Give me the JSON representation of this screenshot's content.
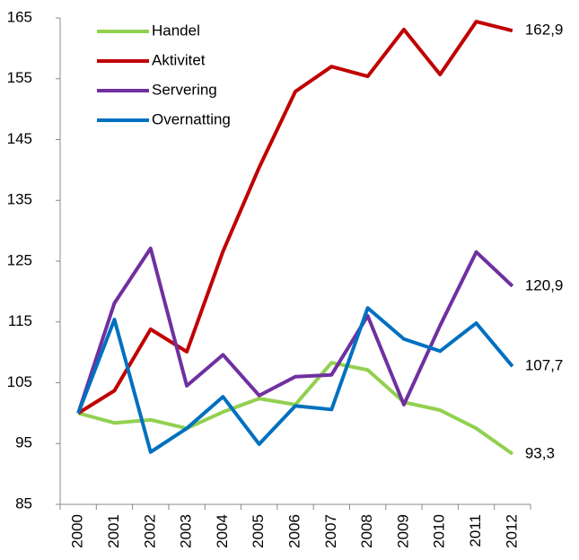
{
  "chart_data": {
    "type": "line",
    "categories": [
      "2000",
      "2001",
      "2002",
      "2003",
      "2004",
      "2005",
      "2006",
      "2007",
      "2008",
      "2009",
      "2010",
      "2011",
      "2012"
    ],
    "series": [
      {
        "name": "Handel",
        "color": "#92d050",
        "values": [
          100,
          98.4,
          98.9,
          97.5,
          100.2,
          102.4,
          101.4,
          108.3,
          107.1,
          101.8,
          100.5,
          97.5,
          93.3
        ],
        "value_labels": [
          null,
          null,
          null,
          null,
          null,
          null,
          null,
          null,
          null,
          null,
          null,
          null,
          "93,3"
        ]
      },
      {
        "name": "Aktivitet",
        "color": "#c00000",
        "values": [
          100,
          103.7,
          113.8,
          110.1,
          126.6,
          140.4,
          152.9,
          157.0,
          155.4,
          163.1,
          155.7,
          164.4,
          162.9
        ],
        "value_labels": [
          null,
          null,
          null,
          null,
          null,
          null,
          null,
          null,
          null,
          null,
          null,
          null,
          "162,9"
        ]
      },
      {
        "name": "Servering",
        "color": "#7030a0",
        "values": [
          100,
          118.1,
          127.1,
          104.5,
          109.6,
          102.9,
          106.0,
          106.3,
          116.0,
          101.4,
          114.4,
          126.5,
          120.9
        ],
        "value_labels": [
          null,
          null,
          null,
          null,
          null,
          null,
          null,
          null,
          null,
          null,
          null,
          null,
          "120,9"
        ]
      },
      {
        "name": "Overnatting",
        "color": "#0070c0",
        "values": [
          100,
          115.4,
          93.6,
          97.5,
          102.7,
          94.9,
          101.2,
          100.6,
          117.3,
          112.2,
          110.2,
          114.8,
          107.7
        ],
        "value_labels": [
          null,
          null,
          null,
          null,
          null,
          null,
          null,
          null,
          null,
          null,
          null,
          null,
          "107,7"
        ]
      }
    ],
    "ylim": [
      85,
      165
    ],
    "yticks": [
      85,
      95,
      105,
      115,
      125,
      135,
      145,
      155,
      165
    ],
    "grid": false,
    "legend": "upper-left"
  }
}
